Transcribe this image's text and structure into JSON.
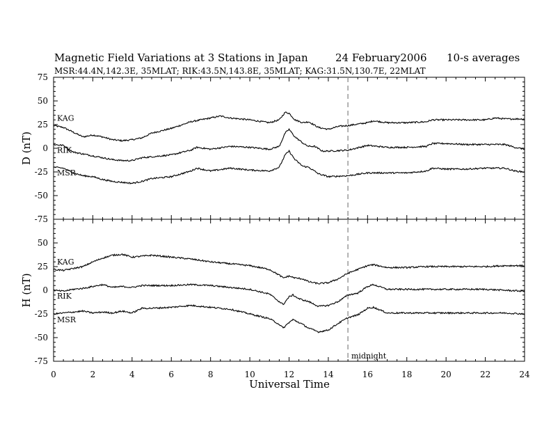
{
  "header": {
    "title_main": "Magnetic Field Variations at 3 Stations in Japan",
    "title_date": "24  February2006",
    "title_avg": "10-s averages",
    "stations_line": "MSR:44.4N,142.3E, 35MLAT;   RIK:43.5N,143.8E, 35MLAT;   KAG:31.5N,130.7E, 22MLAT"
  },
  "chart_data": {
    "type": "line",
    "xlabel": "Universal Time",
    "xlim": [
      0,
      24
    ],
    "xticks": [
      0,
      2,
      4,
      6,
      8,
      10,
      12,
      14,
      16,
      18,
      20,
      22,
      24
    ],
    "midnight_marker": {
      "x": 15,
      "label": "midnight"
    },
    "panels": [
      {
        "id": "D",
        "ylabel": "D (nT)",
        "ylim": [
          -75,
          75
        ],
        "yticks": [
          75,
          50,
          25,
          0,
          -25,
          -50,
          -75
        ],
        "series": [
          {
            "name": "KAG",
            "points": [
              [
                0,
                24
              ],
              [
                0.5,
                22
              ],
              [
                1,
                17
              ],
              [
                1.5,
                12
              ],
              [
                2,
                14
              ],
              [
                2.5,
                12
              ],
              [
                3,
                9
              ],
              [
                3.5,
                8
              ],
              [
                4,
                9
              ],
              [
                4.5,
                11
              ],
              [
                5,
                16
              ],
              [
                6,
                21
              ],
              [
                7,
                28
              ],
              [
                8,
                32
              ],
              [
                8.5,
                34
              ],
              [
                9,
                32
              ],
              [
                10,
                30
              ],
              [
                11,
                27
              ],
              [
                11.5,
                30
              ],
              [
                11.8,
                38
              ],
              [
                12,
                37
              ],
              [
                12.3,
                30
              ],
              [
                12.7,
                27
              ],
              [
                13,
                28
              ],
              [
                13.5,
                22
              ],
              [
                14,
                20
              ],
              [
                14.5,
                23
              ],
              [
                15,
                24
              ],
              [
                16,
                27
              ],
              [
                16.3,
                29
              ],
              [
                17,
                27
              ],
              [
                18,
                27
              ],
              [
                19,
                28
              ],
              [
                19.3,
                30
              ],
              [
                20,
                30
              ],
              [
                21,
                30
              ],
              [
                22,
                30
              ],
              [
                22.5,
                32
              ],
              [
                23,
                31
              ],
              [
                24,
                31
              ]
            ]
          },
          {
            "name": "RIK",
            "points": [
              [
                0,
                4
              ],
              [
                0.5,
                3
              ],
              [
                1,
                -4
              ],
              [
                1.5,
                -6
              ],
              [
                2,
                -8
              ],
              [
                2.5,
                -10
              ],
              [
                3,
                -12
              ],
              [
                3.5,
                -13
              ],
              [
                4,
                -13
              ],
              [
                4.5,
                -10
              ],
              [
                5,
                -9
              ],
              [
                6,
                -7
              ],
              [
                7,
                -2
              ],
              [
                7.3,
                1
              ],
              [
                8,
                -1
              ],
              [
                9,
                2
              ],
              [
                10,
                1
              ],
              [
                11,
                -1
              ],
              [
                11.5,
                2
              ],
              [
                11.8,
                16
              ],
              [
                12,
                20
              ],
              [
                12.3,
                12
              ],
              [
                12.8,
                4
              ],
              [
                13,
                2
              ],
              [
                13.3,
                2
              ],
              [
                13.7,
                -3
              ],
              [
                14,
                -3
              ],
              [
                15,
                -2
              ],
              [
                16,
                3
              ],
              [
                17,
                1
              ],
              [
                18,
                1
              ],
              [
                19,
                2
              ],
              [
                19.3,
                5
              ],
              [
                20,
                5
              ],
              [
                21,
                4
              ],
              [
                22,
                4
              ],
              [
                23,
                4
              ],
              [
                23.5,
                1
              ],
              [
                24,
                -1
              ]
            ]
          },
          {
            "name": "MSR",
            "points": [
              [
                0,
                -20
              ],
              [
                0.5,
                -21
              ],
              [
                1,
                -26
              ],
              [
                1.5,
                -29
              ],
              [
                2,
                -30
              ],
              [
                2.5,
                -33
              ],
              [
                3,
                -35
              ],
              [
                3.5,
                -36
              ],
              [
                4,
                -37
              ],
              [
                4.5,
                -35
              ],
              [
                5,
                -32
              ],
              [
                6,
                -30
              ],
              [
                7,
                -24
              ],
              [
                7.3,
                -21
              ],
              [
                8,
                -24
              ],
              [
                9,
                -21
              ],
              [
                10,
                -23
              ],
              [
                11,
                -24
              ],
              [
                11.5,
                -20
              ],
              [
                11.8,
                -7
              ],
              [
                12,
                -3
              ],
              [
                12.3,
                -12
              ],
              [
                12.7,
                -19
              ],
              [
                13,
                -20
              ],
              [
                13.5,
                -27
              ],
              [
                14,
                -30
              ],
              [
                15,
                -29
              ],
              [
                16,
                -26
              ],
              [
                17,
                -26
              ],
              [
                18,
                -26
              ],
              [
                19,
                -24
              ],
              [
                19.3,
                -21
              ],
              [
                20,
                -22
              ],
              [
                21,
                -22
              ],
              [
                22,
                -21
              ],
              [
                23,
                -21
              ],
              [
                23.5,
                -24
              ],
              [
                24,
                -25
              ]
            ]
          }
        ]
      },
      {
        "id": "H",
        "ylabel": "H (nT)",
        "ylim": [
          -75,
          75
        ],
        "yticks": [
          75,
          50,
          25,
          0,
          -25,
          -50,
          -75
        ],
        "series": [
          {
            "name": "KAG",
            "points": [
              [
                0,
                22
              ],
              [
                0.5,
                21
              ],
              [
                1,
                23
              ],
              [
                1.5,
                25
              ],
              [
                2,
                30
              ],
              [
                2.5,
                34
              ],
              [
                3,
                37
              ],
              [
                3.5,
                38
              ],
              [
                4,
                35
              ],
              [
                4.5,
                36
              ],
              [
                5,
                37
              ],
              [
                6,
                35
              ],
              [
                7,
                33
              ],
              [
                8,
                30
              ],
              [
                9,
                28
              ],
              [
                10,
                26
              ],
              [
                11,
                22
              ],
              [
                11.5,
                16
              ],
              [
                11.7,
                13
              ],
              [
                12,
                15
              ],
              [
                12.3,
                13
              ],
              [
                12.7,
                12
              ],
              [
                13,
                9
              ],
              [
                13.5,
                7
              ],
              [
                14,
                8
              ],
              [
                14.5,
                12
              ],
              [
                15,
                18
              ],
              [
                15.5,
                22
              ],
              [
                16,
                26
              ],
              [
                16.3,
                27
              ],
              [
                17,
                24
              ],
              [
                18,
                24
              ],
              [
                19,
                25
              ],
              [
                20,
                25
              ],
              [
                21,
                25
              ],
              [
                22,
                25
              ],
              [
                23,
                26
              ],
              [
                24,
                26
              ]
            ]
          },
          {
            "name": "RIK",
            "points": [
              [
                0,
                0
              ],
              [
                0.5,
                -1
              ],
              [
                1,
                1
              ],
              [
                1.5,
                2
              ],
              [
                2,
                4
              ],
              [
                2.5,
                6
              ],
              [
                3,
                3
              ],
              [
                3.5,
                4
              ],
              [
                4,
                3
              ],
              [
                4.5,
                5
              ],
              [
                5,
                5
              ],
              [
                6,
                5
              ],
              [
                7,
                6
              ],
              [
                8,
                5
              ],
              [
                9,
                3
              ],
              [
                10,
                1
              ],
              [
                11,
                -4
              ],
              [
                11.5,
                -12
              ],
              [
                11.7,
                -15
              ],
              [
                12,
                -7
              ],
              [
                12.2,
                -5
              ],
              [
                12.5,
                -9
              ],
              [
                13,
                -12
              ],
              [
                13.5,
                -17
              ],
              [
                14,
                -16
              ],
              [
                14.5,
                -12
              ],
              [
                15,
                -5
              ],
              [
                15.5,
                -3
              ],
              [
                16,
                4
              ],
              [
                16.3,
                6
              ],
              [
                17,
                1
              ],
              [
                18,
                1
              ],
              [
                19,
                1
              ],
              [
                20,
                1
              ],
              [
                21,
                1
              ],
              [
                22,
                1
              ],
              [
                23,
                0
              ],
              [
                24,
                -1
              ]
            ]
          },
          {
            "name": "MSR",
            "points": [
              [
                0,
                -25
              ],
              [
                0.5,
                -24
              ],
              [
                1,
                -23
              ],
              [
                1.5,
                -22
              ],
              [
                2,
                -24
              ],
              [
                2.5,
                -23
              ],
              [
                3,
                -24
              ],
              [
                3.5,
                -22
              ],
              [
                4,
                -24
              ],
              [
                4.5,
                -19
              ],
              [
                5,
                -19
              ],
              [
                6,
                -18
              ],
              [
                7,
                -16
              ],
              [
                8,
                -18
              ],
              [
                9,
                -20
              ],
              [
                10,
                -25
              ],
              [
                11,
                -30
              ],
              [
                11.5,
                -36
              ],
              [
                11.7,
                -40
              ],
              [
                12,
                -34
              ],
              [
                12.2,
                -31
              ],
              [
                12.6,
                -35
              ],
              [
                13,
                -40
              ],
              [
                13.5,
                -44
              ],
              [
                14,
                -42
              ],
              [
                14.5,
                -35
              ],
              [
                15,
                -29
              ],
              [
                15.5,
                -26
              ],
              [
                16,
                -19
              ],
              [
                16.3,
                -18
              ],
              [
                17,
                -24
              ],
              [
                18,
                -24
              ],
              [
                19,
                -24
              ],
              [
                20,
                -24
              ],
              [
                21,
                -24
              ],
              [
                22,
                -24
              ],
              [
                23,
                -24
              ],
              [
                24,
                -25
              ]
            ]
          }
        ]
      }
    ]
  }
}
